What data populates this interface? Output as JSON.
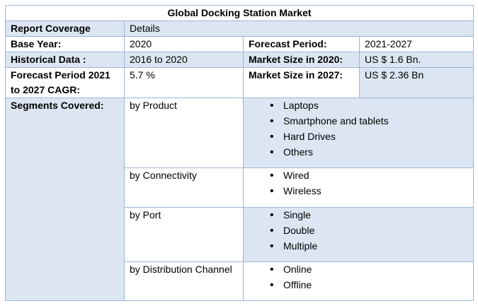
{
  "title": "Global Docking Station Market",
  "header": {
    "col1": "Report Coverage",
    "col2": "Details"
  },
  "info_rows": [
    {
      "label1": "Base Year:",
      "value1": "2020",
      "label2": "Forecast Period:",
      "value2": "2021-2027"
    },
    {
      "label1": "Historical Data :",
      "value1": "2016 to 2020",
      "label2": "Market Size in 2020:",
      "value2": "US $ 1.6 Bn."
    },
    {
      "label1": "Forecast Period 2021 to 2027 CAGR:",
      "value1": "5.7 %",
      "label2": "Market Size in 2027:",
      "value2": "US $ 2.36 Bn"
    }
  ],
  "segments": {
    "label": "Segments Covered:",
    "groups": [
      {
        "name": "by Product",
        "items": [
          "Laptops",
          "Smartphone and tablets",
          "Hard Drives",
          "Others"
        ]
      },
      {
        "name": "by Connectivity",
        "items": [
          "Wired",
          "Wireless"
        ]
      },
      {
        "name": "by Port",
        "items": [
          "Single",
          "Double",
          "Multiple"
        ]
      },
      {
        "name": "by Distribution Channel",
        "items": [
          "Online",
          "Offline"
        ]
      }
    ]
  }
}
